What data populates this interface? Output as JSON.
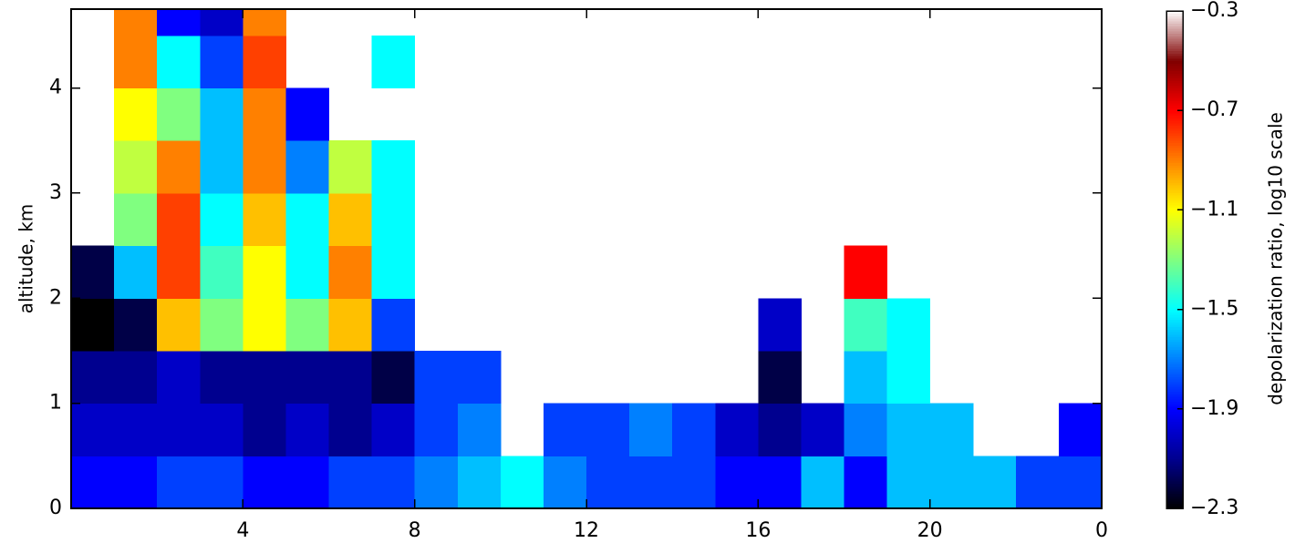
{
  "chart_data": {
    "type": "heatmap",
    "y_label": "altitude, km",
    "colorbar_label": "depolarization ratio, log10 scale",
    "xlim": [
      0,
      24
    ],
    "xticks": [
      4,
      8,
      12,
      16,
      20,
      {
        "value": 24,
        "label": "0"
      }
    ],
    "ylim": [
      0,
      4.75
    ],
    "yticks": [
      0,
      1,
      2,
      3,
      4
    ],
    "clim": [
      -2.3,
      -0.3
    ],
    "cticks": [
      {
        "value": -0.3,
        "label": "−0.3"
      },
      {
        "value": -0.7,
        "label": "−0.7"
      },
      {
        "value": -1.1,
        "label": "−1.1"
      },
      {
        "value": -1.5,
        "label": "−1.5"
      },
      {
        "value": -1.9,
        "label": "−1.9"
      },
      {
        "value": -2.3,
        "label": "−2.3"
      }
    ],
    "colormap": [
      "#000000",
      "#00008f",
      "#0000ff",
      "#0080ff",
      "#00ffff",
      "#80ff80",
      "#ffff00",
      "#ff8000",
      "#ff0000",
      "#800000",
      "#ffffff"
    ],
    "x_bins": [
      0,
      1,
      2,
      3,
      4,
      5,
      6,
      7,
      8,
      9,
      10,
      11,
      12,
      13,
      14,
      15,
      16,
      17,
      18,
      19,
      20,
      21,
      22,
      23,
      24
    ],
    "y_bins": [
      0,
      0.5,
      1,
      1.5,
      2,
      2.5,
      3,
      3.5,
      4,
      4.5,
      4.75
    ],
    "values": [
      [
        -1.9,
        -1.9,
        -1.8,
        -1.8,
        -1.9,
        -1.9,
        -1.8,
        -1.8,
        -1.7,
        -1.6,
        -1.5,
        -1.7,
        -1.8,
        -1.8,
        -1.8,
        -1.9,
        -1.9,
        -1.6,
        -1.9,
        -1.6,
        -1.6,
        -1.6,
        -1.8,
        -1.8
      ],
      [
        -2.0,
        -2.0,
        -2.0,
        -2.0,
        -2.1,
        -2.0,
        -2.1,
        -2.0,
        -1.8,
        -1.7,
        null,
        -1.8,
        -1.8,
        -1.7,
        -1.8,
        -2.0,
        -2.1,
        -2.0,
        -1.7,
        -1.6,
        -1.6,
        null,
        null,
        -1.9
      ],
      [
        -2.1,
        -2.1,
        -2.0,
        -2.1,
        -2.1,
        -2.1,
        -2.1,
        -2.2,
        -1.8,
        -1.8,
        null,
        null,
        null,
        null,
        null,
        null,
        -2.2,
        null,
        -1.6,
        -1.5,
        null,
        null,
        null,
        null
      ],
      [
        -2.3,
        -2.2,
        -1.0,
        -1.3,
        -1.1,
        -1.3,
        -1.0,
        -1.8,
        null,
        null,
        null,
        null,
        null,
        null,
        null,
        null,
        -2.0,
        null,
        -1.4,
        -1.5,
        null,
        null,
        null,
        null
      ],
      [
        -2.2,
        -1.6,
        -0.8,
        -1.4,
        -1.1,
        -1.5,
        -0.9,
        -1.5,
        null,
        null,
        null,
        null,
        null,
        null,
        null,
        null,
        null,
        null,
        -0.7,
        null,
        null,
        null,
        null,
        null
      ],
      [
        null,
        -1.3,
        -0.8,
        -1.5,
        -1.0,
        -1.5,
        -1.0,
        -1.5,
        null,
        null,
        null,
        null,
        null,
        null,
        null,
        null,
        null,
        null,
        null,
        null,
        null,
        null,
        null,
        null
      ],
      [
        null,
        -1.2,
        -0.9,
        -1.6,
        -0.9,
        -1.7,
        -1.2,
        -1.5,
        null,
        null,
        null,
        null,
        null,
        null,
        null,
        null,
        null,
        null,
        null,
        null,
        null,
        null,
        null,
        null
      ],
      [
        null,
        -1.1,
        -1.3,
        -1.6,
        -0.9,
        -1.9,
        null,
        null,
        null,
        null,
        null,
        null,
        null,
        null,
        null,
        null,
        null,
        null,
        null,
        null,
        null,
        null,
        null,
        null
      ],
      [
        null,
        -0.9,
        -1.5,
        -1.8,
        -0.8,
        null,
        null,
        -1.5,
        null,
        null,
        null,
        null,
        null,
        null,
        null,
        null,
        null,
        null,
        null,
        null,
        null,
        null,
        null,
        null
      ],
      [
        null,
        -0.9,
        -1.9,
        -2.0,
        -0.9,
        null,
        null,
        null,
        null,
        null,
        null,
        null,
        null,
        null,
        null,
        null,
        null,
        null,
        null,
        null,
        null,
        null,
        null,
        null
      ]
    ]
  }
}
